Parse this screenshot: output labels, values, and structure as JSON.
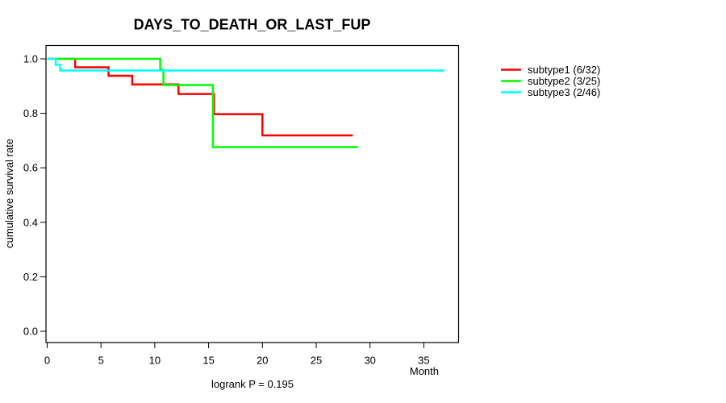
{
  "page": {
    "background_color": "#FFFFFF",
    "text_color": "#000000"
  },
  "chart_data": {
    "type": "line",
    "variant": "kaplan-meier-step",
    "title": "DAYS_TO_DEATH_OR_LAST_FUP",
    "xlabel": "Month",
    "ylabel": "cumulative survival rate",
    "annotation": "logrank P = 0.195",
    "xticks": [
      0,
      5,
      10,
      15,
      20,
      25,
      30,
      35
    ],
    "yticks": [
      0,
      0.2,
      0.4,
      0.6,
      0.8,
      1
    ],
    "xlim": [
      0,
      38.2
    ],
    "ylim": [
      0,
      1
    ],
    "grid": false,
    "legend_position": "right-outside",
    "axis_color": "#000000",
    "series": [
      {
        "name": "subtype1 (6/32)",
        "id": "subtype1",
        "color": "#FF0000",
        "x": [
          0,
          2.6,
          5.7,
          7.9,
          12.2,
          15.5,
          20.0,
          28.4
        ],
        "y": [
          1.0,
          0.969,
          0.938,
          0.906,
          0.871,
          0.797,
          0.719,
          0.719
        ]
      },
      {
        "name": "subtype2 (3/25)",
        "id": "subtype2",
        "color": "#00FF00",
        "x": [
          0,
          10.5,
          10.8,
          15.4,
          28.9
        ],
        "y": [
          1.0,
          0.96,
          0.904,
          0.676,
          0.676
        ]
      },
      {
        "name": "subtype3 (2/46)",
        "id": "subtype3",
        "color": "#00FFFF",
        "x": [
          0,
          0.8,
          1.2,
          36.9
        ],
        "y": [
          1.0,
          0.978,
          0.957,
          0.957
        ]
      }
    ]
  }
}
